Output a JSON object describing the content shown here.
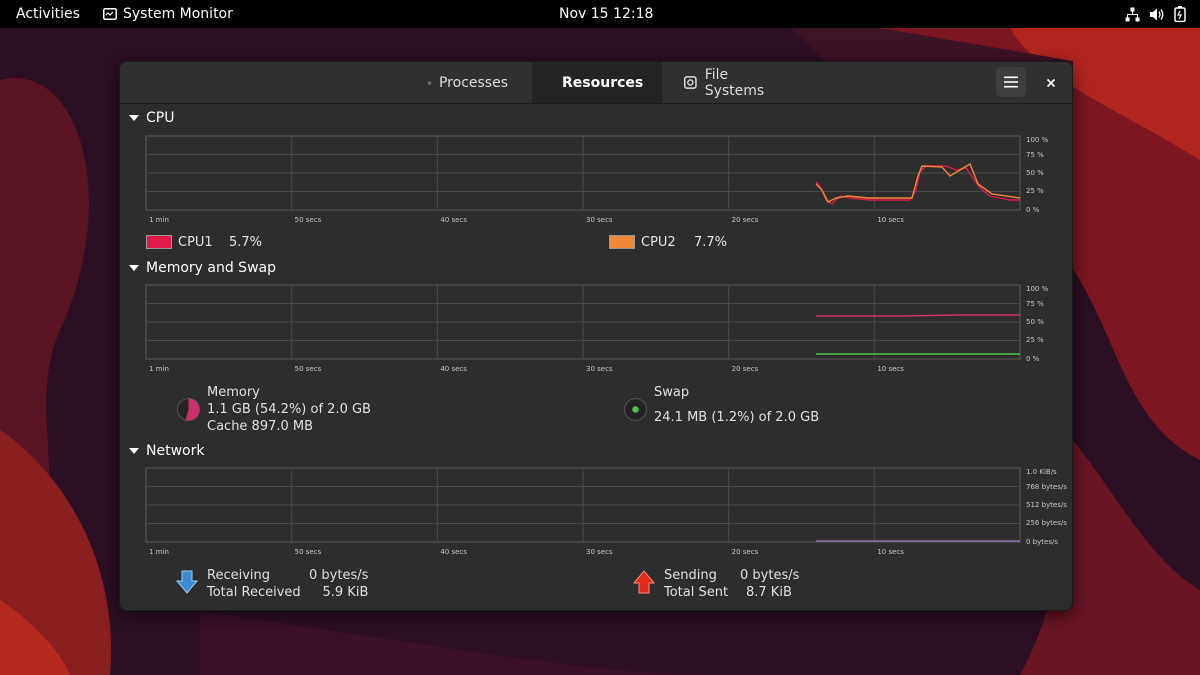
{
  "topbar": {
    "activities": "Activities",
    "app_name": "System Monitor",
    "clock": "Nov 15  12:18"
  },
  "tabs": {
    "processes": "Processes",
    "resources": "Resources",
    "file_systems": "File Systems"
  },
  "time_ticks": [
    "1 min",
    "50 secs",
    "40 secs",
    "30 secs",
    "20 secs",
    "10 secs"
  ],
  "percent_ticks": [
    "100 %",
    "75 %",
    "50 %",
    "25 %",
    "0 %"
  ],
  "network_ticks": [
    "1.0 KiB/s",
    "768 bytes/s",
    "512 bytes/s",
    "256 bytes/s",
    "0 bytes/s"
  ],
  "cpu": {
    "title": "CPU",
    "cpu1": {
      "label": "CPU1",
      "value": "5.7%",
      "color": "#e01b4a"
    },
    "cpu2": {
      "label": "CPU2",
      "value": "7.7%",
      "color": "#f0883a"
    }
  },
  "memory": {
    "title": "Memory and Swap",
    "memory_label": "Memory",
    "memory_value": "1.1 GB (54.2%) of 2.0 GB",
    "cache": "Cache 897.0 MB",
    "memory_fraction": 0.542,
    "memory_color": "#c9306c",
    "swap_label": "Swap",
    "swap_value": "24.1 MB (1.2%) of 2.0 GB",
    "swap_fraction": 0.012,
    "swap_color": "#4ec64b"
  },
  "network": {
    "title": "Network",
    "receiving_label": "Receiving",
    "receiving_value": "0 bytes/s",
    "total_received_label": "Total Received",
    "total_received_value": "5.9 KiB",
    "sending_label": "Sending",
    "sending_value": "0 bytes/s",
    "total_sent_label": "Total Sent",
    "total_sent_value": "8.7 KiB"
  },
  "icons": {
    "app": "system-monitor-icon",
    "processes": "list-icon",
    "resources": "gauge-icon",
    "file_systems": "disk-icon",
    "menu": "hamburger-menu-icon",
    "close": "close-icon",
    "tray": [
      "network-icon",
      "volume-icon",
      "battery-icon"
    ]
  }
}
